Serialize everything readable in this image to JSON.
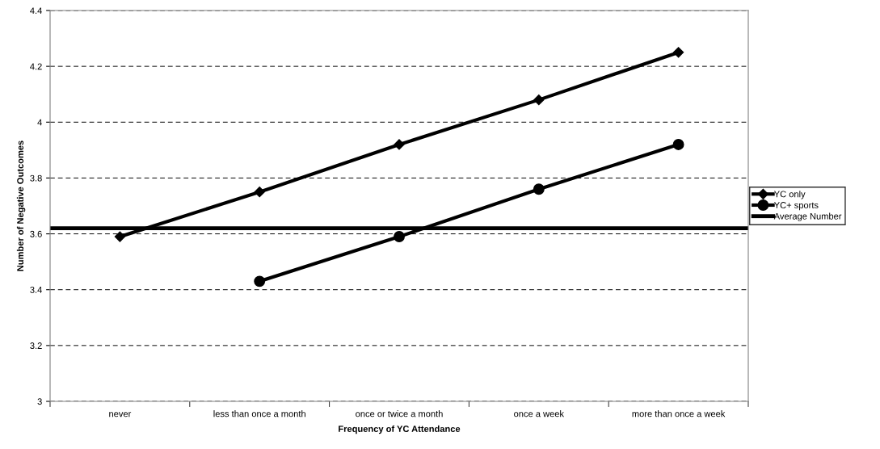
{
  "chart_data": {
    "type": "line",
    "xlabel": "Frequency of YC Attendance",
    "ylabel": "Number of Negative Outcomes",
    "categories": [
      "never",
      "less than once a month",
      "once or twice a month",
      "once a week",
      "more than once a week"
    ],
    "series": [
      {
        "name": "YC only",
        "color": "#000000",
        "marker": "diamond",
        "values": [
          3.59,
          3.75,
          3.92,
          4.08,
          4.25
        ]
      },
      {
        "name": "YC+ sports",
        "color": "#000000",
        "marker": "circle",
        "values": [
          null,
          3.43,
          3.59,
          3.76,
          3.92
        ]
      }
    ],
    "ref_lines": [
      {
        "axis": "y",
        "value": 3.62,
        "label": "Average Number",
        "color": "#000000",
        "line_style": "solid"
      }
    ],
    "ylim": [
      3,
      4.4
    ],
    "yticks": [
      3,
      3.2,
      3.4,
      3.6,
      3.8,
      4,
      4.2,
      4.4
    ],
    "grid": "y",
    "legend": "right",
    "line_style": "solid"
  }
}
